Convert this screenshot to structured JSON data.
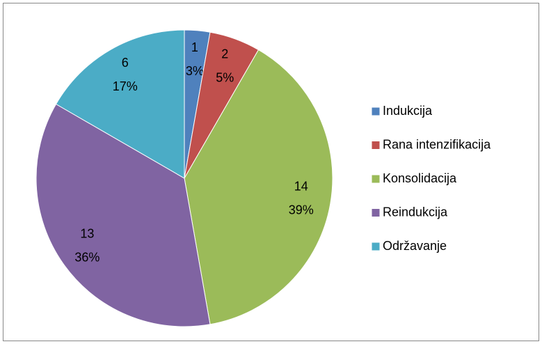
{
  "chart_data": {
    "type": "pie",
    "categories": [
      "Indukcija",
      "Rana intenzifikacija",
      "Konsolidacija",
      "Reindukcija",
      "Održavanje"
    ],
    "values": [
      1,
      2,
      14,
      13,
      6
    ],
    "percents": [
      3,
      5,
      39,
      36,
      17
    ],
    "percent_labels": [
      "3%",
      "5%",
      "39%",
      "36%",
      "17%"
    ],
    "colors": [
      "#4f81bd",
      "#c0504d",
      "#9bbb59",
      "#8064a2",
      "#4bacc6"
    ],
    "legend": "right"
  }
}
